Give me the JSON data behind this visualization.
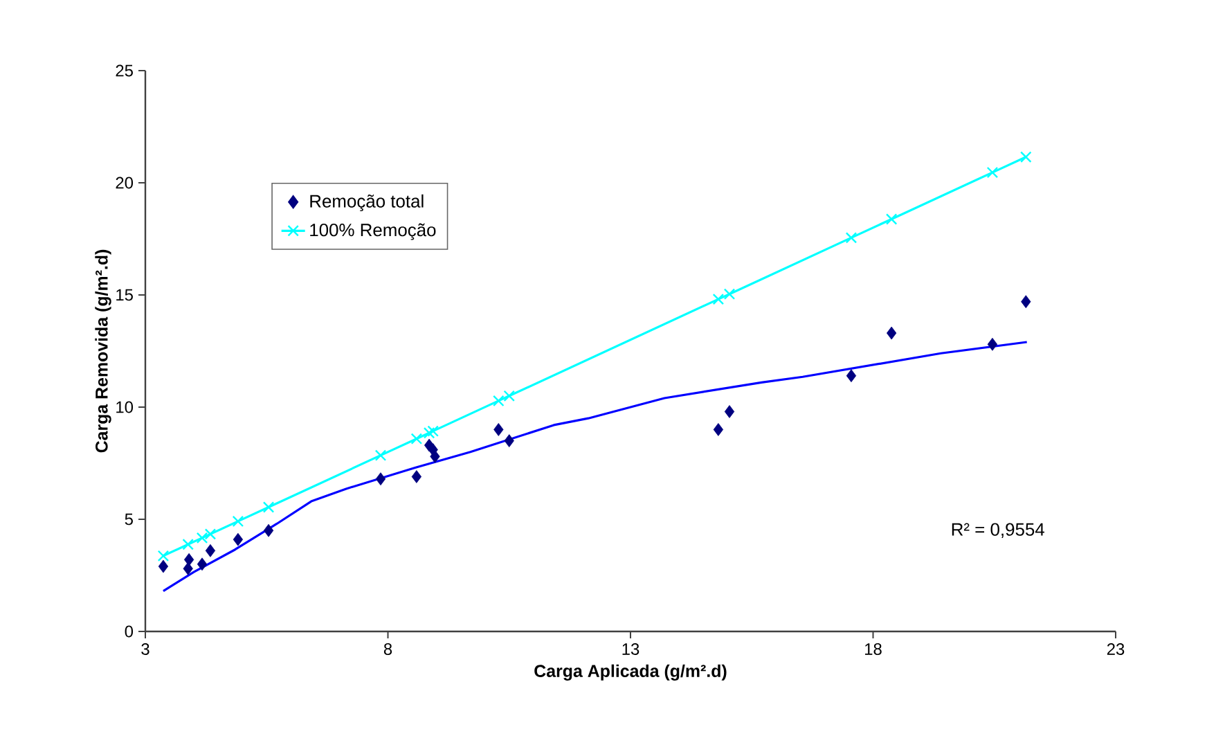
{
  "chart_data": {
    "type": "scatter",
    "xlabel": "Carga Aplicada (g/m².d)",
    "ylabel": "Carga Removida (g/m².d)",
    "xlim": [
      3,
      23
    ],
    "xticks": [
      3,
      8,
      13,
      18,
      23
    ],
    "ylim": [
      0,
      25
    ],
    "yticks": [
      0,
      5,
      10,
      15,
      20,
      25
    ],
    "grid": false,
    "legend": "top left",
    "annotations": [
      "R² = 0,9554"
    ],
    "series": [
      {
        "name": "Remoção total",
        "marker": "diamond",
        "color": "#000080",
        "x": [
          3.37,
          3.88,
          3.9,
          4.17,
          4.34,
          4.91,
          5.54,
          7.85,
          8.59,
          8.85,
          8.93,
          8.97,
          10.28,
          10.5,
          14.81,
          15.04,
          17.55,
          18.38,
          20.46,
          21.15
        ],
        "values": [
          2.9,
          2.8,
          3.2,
          3.0,
          3.6,
          4.1,
          4.5,
          6.8,
          6.9,
          8.3,
          8.1,
          7.8,
          9.0,
          8.5,
          9.0,
          9.8,
          11.4,
          13.3,
          12.8,
          14.7
        ]
      },
      {
        "name": "100% Remoção",
        "type": "line",
        "marker": "cross",
        "color": "#00ffff",
        "x": [
          3.37,
          3.88,
          4.17,
          4.34,
          4.91,
          5.54,
          7.85,
          8.59,
          8.85,
          8.93,
          10.28,
          10.5,
          14.81,
          15.04,
          17.55,
          18.38,
          20.46,
          21.15
        ],
        "values": [
          3.37,
          3.88,
          4.17,
          4.34,
          4.91,
          5.54,
          7.85,
          8.59,
          8.85,
          8.93,
          10.28,
          10.5,
          14.81,
          15.04,
          17.55,
          18.38,
          20.46,
          21.15
        ]
      },
      {
        "type": "line",
        "marker": "none",
        "color": "#0000ff",
        "x": [
          3.37,
          4.0,
          4.85,
          5.71,
          6.42,
          7.14,
          8.56,
          9.7,
          11.42,
          12.13,
          13.7,
          15.7,
          16.55,
          19.4,
          21.17
        ],
        "values": [
          1.8,
          2.65,
          3.65,
          4.8,
          5.8,
          6.36,
          7.3,
          8.0,
          9.2,
          9.5,
          10.4,
          11.1,
          11.35,
          12.4,
          12.9
        ]
      }
    ]
  }
}
